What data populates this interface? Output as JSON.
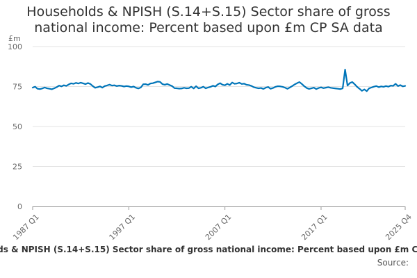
{
  "chart_data": {
    "type": "line",
    "title": "Households & NPISH (S.14+S.15) Sector share of gross national income: Percent based upon £m CP SA data",
    "ylabel": "£m",
    "xlabel": "",
    "ylim": [
      0,
      100
    ],
    "yticks": [
      0,
      25,
      50,
      75,
      100
    ],
    "x_tick_labels": [
      "1987 Q1",
      "1997 Q1",
      "2007 Q1",
      "2017 Q1",
      "2025 Q4"
    ],
    "x_tick_quarter_index": [
      0,
      40,
      80,
      120,
      155
    ],
    "grid": true,
    "series": [
      {
        "name": "Households & NPISH (S.14+S.15) Sector share of gross national income: Percent based upon £m CP SA data",
        "color": "#0075b9",
        "start": "1987 Q1",
        "frequency": "quarterly",
        "values": [
          74.3,
          74.9,
          73.6,
          73.4,
          73.8,
          74.4,
          73.9,
          73.6,
          73.3,
          73.9,
          74.6,
          75.6,
          75.1,
          75.8,
          75.4,
          76.3,
          77.0,
          76.7,
          77.3,
          76.9,
          77.4,
          77.0,
          76.5,
          77.2,
          76.6,
          75.3,
          74.2,
          74.6,
          75.1,
          74.3,
          75.3,
          75.7,
          76.2,
          75.6,
          75.8,
          75.3,
          75.6,
          75.4,
          75.0,
          75.3,
          75.1,
          74.6,
          75.0,
          74.2,
          73.8,
          74.4,
          76.4,
          76.5,
          76.0,
          76.9,
          77.1,
          77.6,
          78.1,
          77.9,
          76.5,
          76.1,
          76.6,
          75.9,
          75.3,
          74.0,
          73.9,
          73.7,
          73.8,
          74.2,
          73.9,
          74.0,
          74.9,
          73.8,
          75.2,
          73.9,
          74.2,
          74.9,
          73.9,
          74.4,
          74.8,
          75.5,
          75.0,
          76.3,
          77.1,
          76.1,
          75.8,
          76.7,
          75.9,
          77.5,
          76.7,
          76.9,
          77.4,
          76.6,
          76.8,
          76.1,
          75.9,
          75.4,
          74.6,
          74.2,
          73.9,
          74.1,
          73.5,
          74.3,
          74.7,
          73.6,
          74.1,
          74.8,
          75.2,
          75.1,
          74.8,
          74.3,
          73.6,
          74.4,
          75.3,
          76.3,
          77.1,
          77.8,
          76.6,
          75.2,
          74.1,
          73.5,
          73.9,
          74.3,
          73.4,
          74.1,
          74.5,
          74.0,
          74.3,
          74.6,
          74.2,
          74.0,
          73.8,
          73.6,
          73.4,
          73.9,
          85.6,
          75.6,
          77.2,
          77.8,
          76.4,
          74.8,
          73.6,
          72.3,
          73.2,
          72.1,
          73.9,
          74.4,
          74.9,
          75.3,
          74.6,
          75.1,
          74.8,
          75.3,
          74.9,
          75.6,
          75.4,
          76.7,
          75.3,
          75.9,
          75.1,
          75.4
        ]
      }
    ],
    "source_label": "Source:"
  }
}
